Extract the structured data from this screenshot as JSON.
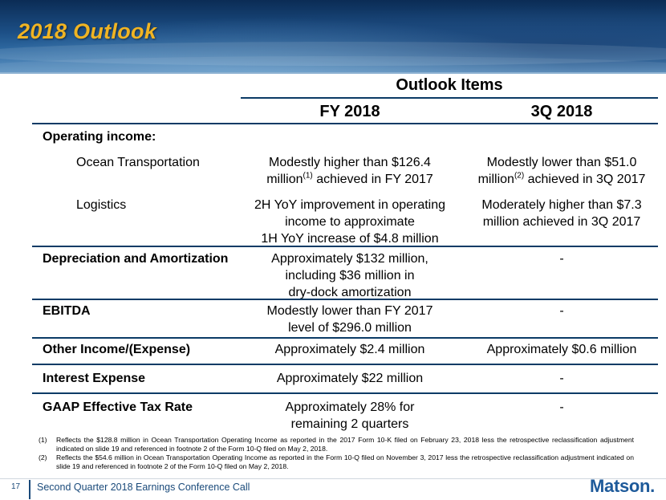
{
  "header": {
    "title": "2018 Outlook"
  },
  "table": {
    "group_header": "Outlook Items",
    "columns": [
      "FY 2018",
      "3Q 2018"
    ],
    "rows": [
      {
        "label": "Operating income:",
        "fy": "",
        "q3": ""
      },
      {
        "label": "Ocean Transportation",
        "fy_lines": [
          "Modestly higher than $126.4",
          "million",
          "(1)",
          " achieved in FY 2017"
        ],
        "q3_lines": [
          "Modestly lower than $51.0",
          "million",
          "(2)",
          " achieved in 3Q 2017"
        ]
      },
      {
        "label": "Logistics",
        "fy": [
          "2H YoY improvement in operating",
          "income to approximate",
          "1H YoY increase of $4.8 million"
        ],
        "q3": [
          "Moderately higher than $7.3",
          "million achieved in 3Q 2017"
        ]
      },
      {
        "label": "Depreciation and Amortization",
        "fy": [
          "Approximately $132 million,",
          "including $36 million in",
          "dry-dock amortization"
        ],
        "q3": [
          "-"
        ]
      },
      {
        "label": "EBITDA",
        "fy": [
          "Modestly lower than FY 2017",
          "level of $296.0 million"
        ],
        "q3": [
          "-"
        ]
      },
      {
        "label": "Other Income/(Expense)",
        "fy": [
          "Approximately $2.4 million"
        ],
        "q3": [
          "Approximately $0.6 million"
        ]
      },
      {
        "label": "Interest Expense",
        "fy": [
          "Approximately $22 million"
        ],
        "q3": [
          "-"
        ]
      },
      {
        "label": "GAAP Effective Tax Rate",
        "fy": [
          "Approximately 28% for",
          "remaining 2 quarters"
        ],
        "q3": [
          "-"
        ]
      }
    ]
  },
  "footnotes": [
    {
      "num": "(1)",
      "text": "Reflects the $128.8 million in Ocean Transportation Operating Income as reported in the 2017 Form 10-K filed on February 23, 2018 less the retrospective reclassification adjustment indicated on slide 19 and referenced in footnote 2 of the Form 10-Q filed on May 2, 2018."
    },
    {
      "num": "(2)",
      "text": "Reflects the $54.6 million in Ocean Transportation Operating Income as reported in the Form 10-Q filed on November 3, 2017 less the retrospective reclassification adjustment indicated on slide 19 and referenced in footnote 2 of the Form 10-Q filed on May 2, 2018."
    }
  ],
  "footer": {
    "page_number": "17",
    "text": "Second Quarter 2018 Earnings Conference Call",
    "logo": "Matson."
  }
}
